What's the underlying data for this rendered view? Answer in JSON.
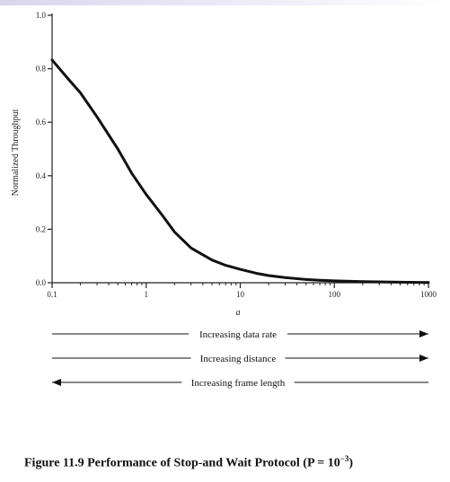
{
  "chart_data": {
    "type": "line",
    "xscale": "log",
    "xlim": [
      0.1,
      1000
    ],
    "ylim": [
      0,
      1.0
    ],
    "xlabel": "a",
    "ylabel": "Normalized Throughput",
    "x_tick_labels": [
      "0.1",
      "1",
      "10",
      "100",
      "1000"
    ],
    "y_tick_labels": [
      "0.0",
      "0.2",
      "0.4",
      "0.6",
      "0.8",
      "1.0"
    ],
    "x_ticks": [
      0.1,
      1,
      10,
      100,
      1000
    ],
    "y_ticks": [
      0,
      0.2,
      0.4,
      0.6,
      0.8,
      1.0
    ],
    "series": [
      {
        "x": [
          0.1,
          0.15,
          0.2,
          0.3,
          0.5,
          0.7,
          1,
          1.5,
          2,
          3,
          5,
          7,
          10,
          15,
          20,
          30,
          50,
          70,
          100,
          200,
          500,
          1000
        ],
        "y": [
          0.833,
          0.76,
          0.71,
          0.62,
          0.5,
          0.41,
          0.33,
          0.25,
          0.19,
          0.13,
          0.085,
          0.065,
          0.05,
          0.035,
          0.027,
          0.019,
          0.012,
          0.009,
          0.007,
          0.004,
          0.002,
          0.001
        ]
      }
    ],
    "arrows": [
      {
        "label": "Increasing data rate",
        "direction": "right"
      },
      {
        "label": "Increasing distance",
        "direction": "right"
      },
      {
        "label": "Increasing frame length",
        "direction": "left"
      }
    ]
  },
  "caption": {
    "prefix": "Figure 11.9  Performance of Stop-and Wait Protocol (P = 10",
    "exponent": "−3",
    "suffix": ")"
  },
  "colors": {
    "line": "#111111",
    "axis": "#222222",
    "top_strip": "#d9d6ee"
  }
}
